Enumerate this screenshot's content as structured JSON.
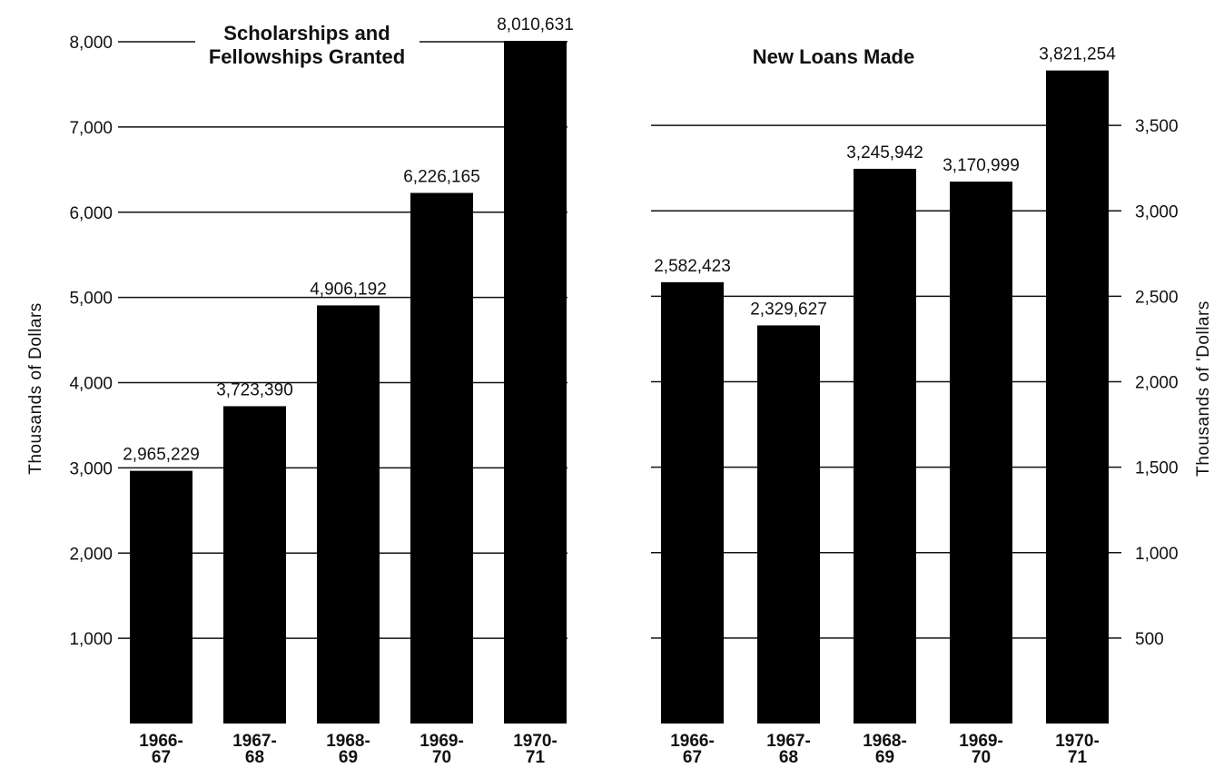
{
  "chart_data": [
    {
      "type": "bar",
      "title_lines": [
        "Scholarships and",
        "Fellowships Granted"
      ],
      "xlabel": "",
      "ylabel": "Thousands  of  Dollars",
      "ylim": [
        0,
        8000
      ],
      "yticks": [
        1000,
        2000,
        3000,
        4000,
        5000,
        6000,
        7000,
        8000
      ],
      "ytick_labels": [
        "1,000",
        "2,000",
        "3,000",
        "4,000",
        "5,000",
        "6,000",
        "7,000",
        "8,000"
      ],
      "y_axis_side": "left",
      "grid": true,
      "categories": [
        {
          "line1": "1966-",
          "line2": "67"
        },
        {
          "line1": "1967-",
          "line2": "68"
        },
        {
          "line1": "1968-",
          "line2": "69"
        },
        {
          "line1": "1969-",
          "line2": "70"
        },
        {
          "line1": "1970-",
          "line2": "71"
        }
      ],
      "values": [
        2965229,
        3723390,
        4906192,
        6226165,
        8010631
      ],
      "value_labels": [
        "2,965,229",
        "3,723,390",
        "4,906,192",
        "6,226,165",
        "8,010,631"
      ],
      "value_unit_divisor": 1000,
      "bar_color": "#000000"
    },
    {
      "type": "bar",
      "title_lines": [
        "New Loans Made"
      ],
      "xlabel": "",
      "ylabel": "Thousands  of 'Dollars",
      "ylim": [
        0,
        4000
      ],
      "yticks": [
        500,
        1000,
        1500,
        2000,
        2500,
        3000,
        3500
      ],
      "ytick_labels": [
        "500",
        "1,000",
        "1,500",
        "2,000",
        "2,500",
        "3,000",
        "3,500"
      ],
      "y_axis_side": "right",
      "grid": true,
      "categories": [
        {
          "line1": "1966-",
          "line2": "67"
        },
        {
          "line1": "1967-",
          "line2": "68"
        },
        {
          "line1": "1968-",
          "line2": "69"
        },
        {
          "line1": "1969-",
          "line2": "70"
        },
        {
          "line1": "1970-",
          "line2": "71"
        }
      ],
      "values": [
        2582423,
        2329627,
        3245942,
        3170999,
        3821254
      ],
      "value_labels": [
        "2,582,423",
        "2,329,627",
        "3,245,942",
        "3,170,999",
        "3,821,254"
      ],
      "value_unit_divisor": 1000,
      "bar_color": "#000000"
    }
  ]
}
